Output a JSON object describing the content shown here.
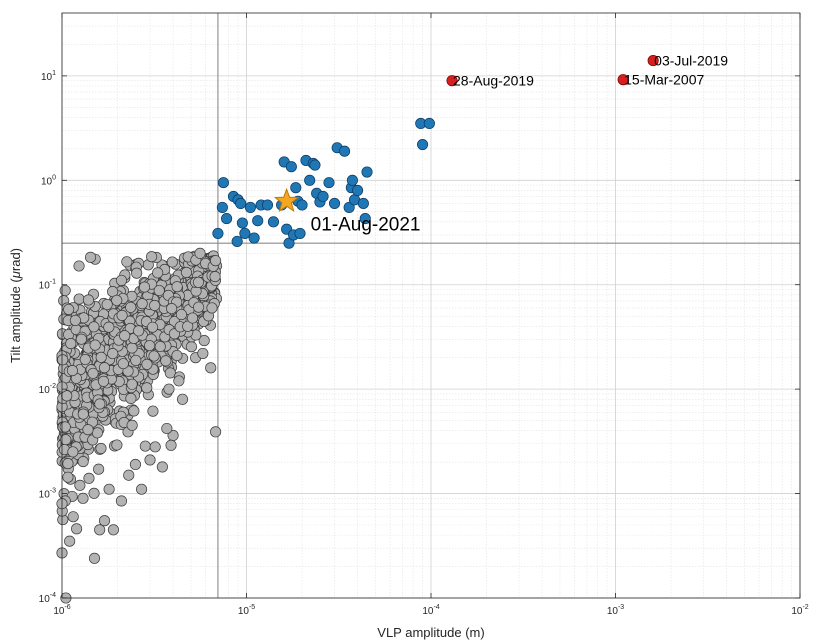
{
  "chart_data": {
    "type": "scatter",
    "title": "",
    "xlabel": "VLP amplitude (m)",
    "ylabel_prefix": "Tilt amplitude (",
    "ylabel_mu": "μ",
    "ylabel_suffix": "rad)",
    "xscale": "log",
    "yscale": "log",
    "xlim": [
      1e-06,
      0.01
    ],
    "ylim": [
      0.0001,
      40
    ],
    "grid": true,
    "x_ticks": [
      {
        "value": 1e-06,
        "base": "10",
        "exp": "-6"
      },
      {
        "value": 1e-05,
        "base": "10",
        "exp": "-5"
      },
      {
        "value": 0.0001,
        "base": "10",
        "exp": "-4"
      },
      {
        "value": 0.001,
        "base": "10",
        "exp": "-3"
      },
      {
        "value": 0.01,
        "base": "10",
        "exp": "-2"
      }
    ],
    "y_ticks": [
      {
        "value": 0.0001,
        "base": "10",
        "exp": "-4"
      },
      {
        "value": 0.001,
        "base": "10",
        "exp": "-3"
      },
      {
        "value": 0.01,
        "base": "10",
        "exp": "-2"
      },
      {
        "value": 0.1,
        "base": "10",
        "exp": "-1"
      },
      {
        "value": 1,
        "base": "10",
        "exp": "0"
      },
      {
        "value": 10,
        "base": "10",
        "exp": "1"
      }
    ],
    "threshold_lines": {
      "x": 7e-06,
      "y": 0.25
    },
    "colors": {
      "gray_fill": "#b3b3b3",
      "gray_edge": "#3a3a3a",
      "blue_fill": "#1f77b4",
      "blue_edge": "#0b3a66",
      "red_fill": "#d62020",
      "red_edge": "#7a0000",
      "star_fill": "#f5a623",
      "star_edge": "#c07a00",
      "threshold": "#8c8c8c"
    },
    "series": [
      {
        "kind": "gray",
        "cluster_seed": 12345,
        "points": [
          [
            1.05e-06,
            0.0001
          ],
          [
            1e-06,
            0.00027
          ],
          [
            1.1e-06,
            0.00035
          ],
          [
            1.15e-06,
            0.0006
          ],
          [
            1.2e-06,
            0.00046
          ],
          [
            1e-06,
            0.0008
          ],
          [
            1.3e-06,
            0.0009
          ],
          [
            1.25e-06,
            0.0012
          ],
          [
            1.5e-06,
            0.00024
          ],
          [
            1.6e-06,
            0.00045
          ],
          [
            1.7e-06,
            0.00055
          ],
          [
            1.9e-06,
            0.00045
          ],
          [
            2.1e-06,
            0.00085
          ],
          [
            1.8e-06,
            0.0011
          ],
          [
            1.4e-06,
            0.0014
          ],
          [
            2.3e-06,
            0.0015
          ],
          [
            2.7e-06,
            0.0011
          ],
          [
            2.5e-06,
            0.0019
          ],
          [
            3e-06,
            0.0021
          ],
          [
            3.5e-06,
            0.0018
          ],
          [
            3.2e-06,
            0.0028
          ],
          [
            4e-06,
            0.0036
          ],
          [
            3.7e-06,
            0.0042
          ],
          [
            3.9e-06,
            0.0029
          ],
          [
            2.4e-06,
            0.0045
          ],
          [
            6.8e-06,
            0.0039
          ],
          [
            4.5e-06,
            0.008
          ],
          [
            6.4e-06,
            0.016
          ],
          [
            5.3e-06,
            0.02
          ],
          [
            5.8e-06,
            0.022
          ],
          [
            4.3e-06,
            0.012
          ],
          [
            4.8e-06,
            0.04
          ],
          [
            5.1e-06,
            0.048
          ],
          [
            5.5e-06,
            0.061
          ],
          [
            6.5e-06,
            0.06
          ],
          [
            3.6e-06,
            0.14
          ],
          [
            3.3e-06,
            0.13
          ],
          [
            2.8e-06,
            0.095
          ],
          [
            2.1e-06,
            0.11
          ],
          [
            6e-06,
            0.16
          ],
          [
            6.6e-06,
            0.15
          ],
          [
            5.6e-06,
            0.2
          ],
          [
            6.8e-06,
            0.17
          ],
          [
            4.2e-06,
            0.021
          ],
          [
            3.8e-06,
            0.01
          ]
        ]
      },
      {
        "kind": "blue",
        "points": [
          [
            7e-06,
            0.31
          ],
          [
            7.4e-06,
            0.55
          ],
          [
            7.5e-06,
            0.95
          ],
          [
            7.8e-06,
            0.43
          ],
          [
            8.5e-06,
            0.7
          ],
          [
            8.9e-06,
            0.26
          ],
          [
            9e-06,
            0.65
          ],
          [
            9.3e-06,
            0.6
          ],
          [
            9.5e-06,
            0.39
          ],
          [
            9.8e-06,
            0.31
          ],
          [
            1.05e-05,
            0.55
          ],
          [
            1.1e-05,
            0.28
          ],
          [
            1.15e-05,
            0.41
          ],
          [
            1.2e-05,
            0.58
          ],
          [
            1.3e-05,
            0.58
          ],
          [
            1.4e-05,
            0.4
          ],
          [
            1.55e-05,
            0.58
          ],
          [
            1.6e-05,
            1.5
          ],
          [
            1.65e-05,
            0.34
          ],
          [
            1.7e-05,
            0.25
          ],
          [
            1.75e-05,
            1.35
          ],
          [
            1.8e-05,
            0.3
          ],
          [
            1.85e-05,
            0.85
          ],
          [
            1.9e-05,
            0.63
          ],
          [
            1.95e-05,
            0.31
          ],
          [
            2e-05,
            0.58
          ],
          [
            2.1e-05,
            1.55
          ],
          [
            2.2e-05,
            1.0
          ],
          [
            2.3e-05,
            1.45
          ],
          [
            2.35e-05,
            1.4
          ],
          [
            2.4e-05,
            0.75
          ],
          [
            2.5e-05,
            0.62
          ],
          [
            2.6e-05,
            0.7
          ],
          [
            2.8e-05,
            0.95
          ],
          [
            3e-05,
            0.6
          ],
          [
            3.1e-05,
            2.05
          ],
          [
            3.4e-05,
            1.9
          ],
          [
            3.6e-05,
            0.55
          ],
          [
            3.7e-05,
            0.85
          ],
          [
            3.75e-05,
            1.0
          ],
          [
            3.85e-05,
            0.65
          ],
          [
            4e-05,
            0.8
          ],
          [
            4.3e-05,
            0.6
          ],
          [
            4.4e-05,
            0.43
          ],
          [
            4.5e-05,
            1.2
          ],
          [
            8.8e-05,
            3.5
          ],
          [
            9e-05,
            2.2
          ],
          [
            9.8e-05,
            3.5
          ]
        ]
      },
      {
        "kind": "red",
        "points": [
          [
            0.00013,
            9.0
          ],
          [
            0.0011,
            9.2
          ],
          [
            0.0016,
            14.0
          ]
        ]
      },
      {
        "kind": "star",
        "points": [
          [
            1.65e-05,
            0.63
          ]
        ]
      }
    ],
    "annotations": [
      {
        "text": "28-Aug-2019",
        "x": 0.00013,
        "y": 9.0,
        "size": "normal"
      },
      {
        "text": "15-Mar-2007",
        "x": 0.0011,
        "y": 9.2,
        "size": "normal"
      },
      {
        "text": "03-Jul-2019",
        "x": 0.0016,
        "y": 14.0,
        "size": "normal"
      },
      {
        "text": "01-Aug-2021",
        "x": 1.65e-05,
        "y": 0.63,
        "size": "big"
      }
    ]
  }
}
